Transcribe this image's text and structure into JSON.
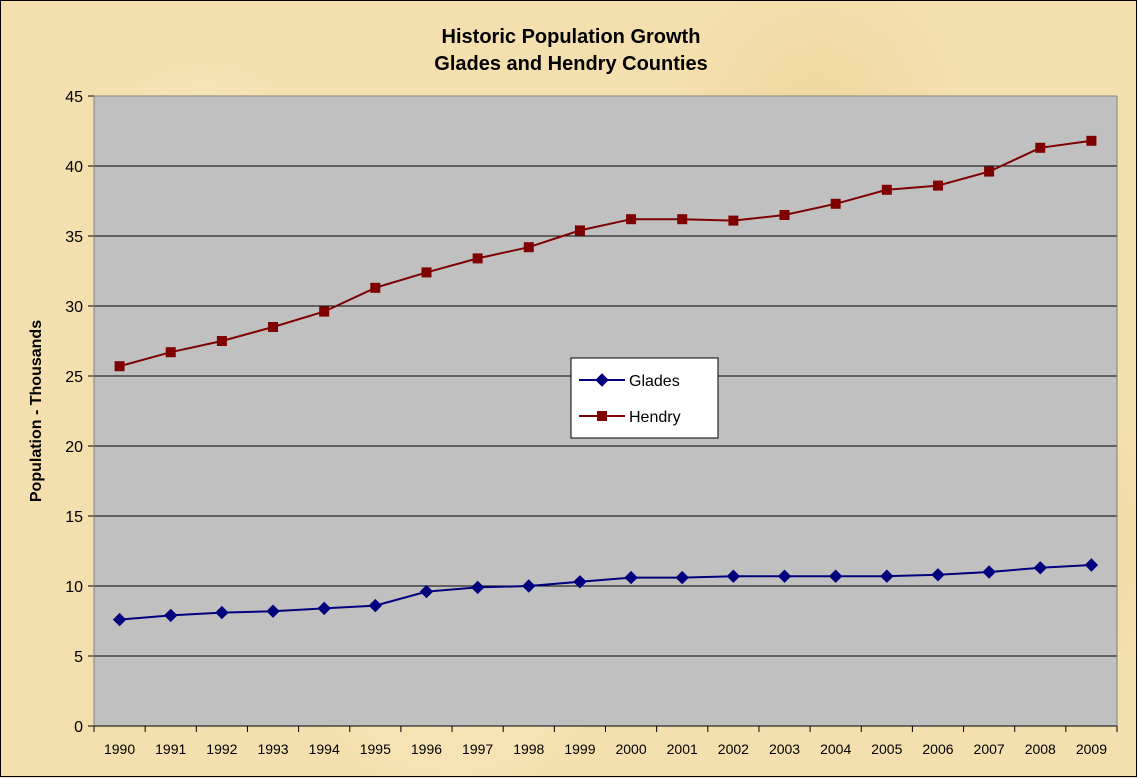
{
  "chart_data": {
    "type": "line",
    "title_line1": "Historic Population Growth",
    "title_line2": "Glades and Hendry Counties",
    "xlabel": "",
    "ylabel": "Population - Thousands",
    "ylim": [
      0,
      45
    ],
    "yticks": [
      0,
      5,
      10,
      15,
      20,
      25,
      30,
      35,
      40,
      45
    ],
    "grid": "horizontal",
    "legend_position": "center",
    "categories": [
      "1990",
      "1991",
      "1992",
      "1993",
      "1994",
      "1995",
      "1996",
      "1997",
      "1998",
      "1999",
      "2000",
      "2001",
      "2002",
      "2003",
      "2004",
      "2005",
      "2006",
      "2007",
      "2008",
      "2009"
    ],
    "series": [
      {
        "name": "Glades",
        "color": "#00007f",
        "marker": "diamond",
        "values": [
          7.6,
          7.9,
          8.1,
          8.2,
          8.4,
          8.6,
          9.6,
          9.9,
          10.0,
          10.3,
          10.6,
          10.6,
          10.7,
          10.7,
          10.7,
          10.7,
          10.8,
          11.0,
          11.3,
          11.5
        ]
      },
      {
        "name": "Hendry",
        "color": "#7f0000",
        "marker": "square",
        "values": [
          25.7,
          26.7,
          27.5,
          28.5,
          29.6,
          31.3,
          32.4,
          33.4,
          34.2,
          35.4,
          36.2,
          36.2,
          36.1,
          36.5,
          37.3,
          38.3,
          38.6,
          39.6,
          41.3,
          41.8
        ]
      }
    ],
    "colors": {
      "plot_background": "#c0c0c0",
      "gridline": "#000000",
      "chart_background": "#f4dfae"
    }
  }
}
